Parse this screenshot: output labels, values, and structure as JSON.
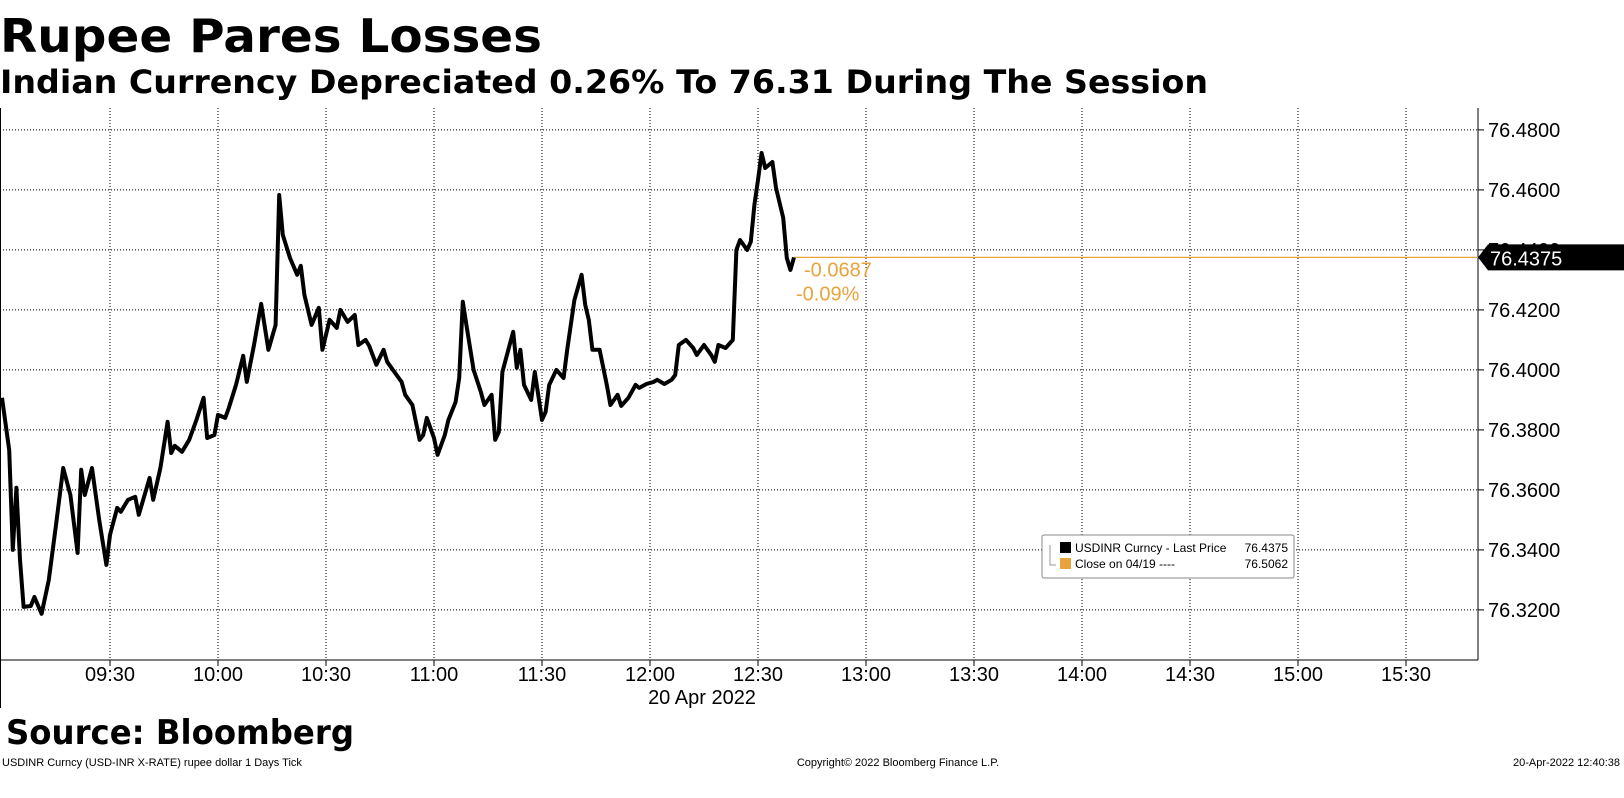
{
  "chart_data": {
    "type": "line",
    "title": "Rupee Pares Losses",
    "subtitle": "Indian Currency Depreciated 0.26% To 76.31 During The Session",
    "x_axis_label": "20 Apr 2022",
    "x": [
      "09:00",
      "09:02",
      "09:03",
      "09:04",
      "09:05",
      "09:06",
      "09:08",
      "09:09",
      "09:11",
      "09:13",
      "09:15",
      "09:17",
      "09:19",
      "09:21",
      "09:22",
      "09:23",
      "09:25",
      "09:27",
      "09:29",
      "09:30",
      "09:32",
      "09:33",
      "09:35",
      "09:37",
      "09:38",
      "09:41",
      "09:42",
      "09:44",
      "09:46",
      "09:47",
      "09:48",
      "09:50",
      "09:52",
      "09:54",
      "09:56",
      "09:57",
      "09:59",
      "10:00",
      "10:02",
      "10:03",
      "10:05",
      "10:07",
      "10:08",
      "10:10",
      "10:12",
      "10:14",
      "10:16",
      "10:17",
      "10:18",
      "10:20",
      "10:22",
      "10:23",
      "10:24",
      "10:26",
      "10:28",
      "10:29",
      "10:31",
      "10:33",
      "10:34",
      "10:36",
      "10:38",
      "10:39",
      "10:41",
      "10:42",
      "10:44",
      "10:46",
      "10:47",
      "10:49",
      "10:51",
      "10:52",
      "10:54",
      "10:56",
      "10:57",
      "10:58",
      "11:00",
      "11:01",
      "11:03",
      "11:04",
      "11:06",
      "11:07",
      "11:08",
      "11:09",
      "11:11",
      "11:13",
      "11:14",
      "11:16",
      "11:17",
      "11:18",
      "11:19",
      "11:21",
      "11:22",
      "11:23",
      "11:24",
      "11:25",
      "11:27",
      "11:28",
      "11:30",
      "11:31",
      "11:32",
      "11:34",
      "11:36",
      "11:37",
      "11:39",
      "11:41",
      "11:42",
      "11:43",
      "11:44",
      "11:46",
      "11:48",
      "11:49",
      "11:51",
      "11:52",
      "11:54",
      "11:56",
      "11:57",
      "11:59",
      "12:01",
      "12:02",
      "12:04",
      "12:06",
      "12:07",
      "12:08",
      "12:10",
      "12:12",
      "12:13",
      "12:15",
      "12:17",
      "12:18",
      "12:19",
      "12:21",
      "12:23",
      "12:24",
      "12:25",
      "12:27",
      "12:28",
      "12:29",
      "12:30",
      "12:31",
      "12:32",
      "12:34",
      "12:35",
      "12:37",
      "12:38",
      "12:39",
      "12:40"
    ],
    "series": [
      {
        "name": "USDINR Curncy - Last Price",
        "color": "#000000",
        "values": [
          76.3907,
          76.3733,
          76.34,
          76.3607,
          76.3367,
          76.321,
          76.3213,
          76.3243,
          76.3187,
          76.33,
          76.3483,
          76.3673,
          76.3583,
          76.339,
          76.3667,
          76.3583,
          76.3673,
          76.35,
          76.335,
          76.345,
          76.354,
          76.3527,
          76.3567,
          76.3577,
          76.3517,
          76.364,
          76.3567,
          76.3673,
          76.3827,
          76.3723,
          76.3747,
          76.3727,
          76.3767,
          76.3833,
          76.3907,
          76.3773,
          76.3783,
          76.385,
          76.384,
          76.3873,
          76.395,
          76.4047,
          76.396,
          76.4083,
          76.422,
          76.4067,
          76.415,
          76.4583,
          76.445,
          76.4373,
          76.4317,
          76.4347,
          76.425,
          76.415,
          76.4207,
          76.4067,
          76.4167,
          76.414,
          76.42,
          76.416,
          76.4183,
          76.4083,
          76.41,
          76.408,
          76.4017,
          76.4067,
          76.4027,
          76.3993,
          76.396,
          76.3917,
          76.3883,
          76.3767,
          76.3783,
          76.384,
          76.3773,
          76.3717,
          76.3783,
          76.3833,
          76.3893,
          76.3973,
          76.4227,
          76.415,
          76.4,
          76.3927,
          76.3883,
          76.3917,
          76.3767,
          76.3793,
          76.3993,
          76.4083,
          76.4127,
          76.4007,
          76.4067,
          76.395,
          76.39,
          76.3993,
          76.3833,
          76.386,
          76.395,
          76.4,
          76.3973,
          76.4067,
          76.4233,
          76.4317,
          76.4217,
          76.4167,
          76.4067,
          76.4067,
          76.395,
          76.3883,
          76.3917,
          76.388,
          76.3907,
          76.395,
          76.394,
          76.3953,
          76.396,
          76.3967,
          76.3953,
          76.3967,
          76.3983,
          76.4083,
          76.41,
          76.4073,
          76.405,
          76.4083,
          76.405,
          76.4027,
          76.4083,
          76.4073,
          76.41,
          76.44,
          76.4433,
          76.44,
          76.4427,
          76.455,
          76.4633,
          76.4723,
          76.4673,
          76.4693,
          76.4607,
          76.4507,
          76.4373,
          76.4333,
          76.4375
        ],
        "last_value": 76.4375
      },
      {
        "name": "Close on 04/19 ----",
        "color": "#e8a33d",
        "last_value": 76.5062
      }
    ],
    "change": -0.0687,
    "change_pct": {
      "value": -0.09,
      "label": "-0.09%"
    },
    "annotation_color": "#e8a33d",
    "xlim": [
      "09:00",
      "15:50"
    ],
    "xticks": [
      "09:30",
      "10:00",
      "10:30",
      "11:00",
      "11:30",
      "12:00",
      "12:30",
      "13:00",
      "13:30",
      "14:00",
      "14:30",
      "15:00",
      "15:30"
    ],
    "ylim": [
      76.3033,
      76.4873
    ],
    "yticks": [
      {
        "value": 76.32,
        "label": "76.3200"
      },
      {
        "value": 76.34,
        "label": "76.3400"
      },
      {
        "value": 76.36,
        "label": "76.3600"
      },
      {
        "value": 76.38,
        "label": "76.3800"
      },
      {
        "value": 76.4,
        "label": "76.4000"
      },
      {
        "value": 76.42,
        "label": "76.4200"
      },
      {
        "value": 76.44,
        "label": "76.4400"
      },
      {
        "value": 76.46,
        "label": "76.4600"
      },
      {
        "value": 76.48,
        "label": "76.4800"
      }
    ],
    "grid": true,
    "legend_position": "lower-right",
    "source": "Source: Bloomberg",
    "footer_left": "USDINR Curncy (USD-INR X-RATE) rupee dollar 1 Days  Tick",
    "footer_center": "Copyright© 2022 Bloomberg Finance L.P.",
    "footer_right": "20-Apr-2022 12:40:38"
  }
}
